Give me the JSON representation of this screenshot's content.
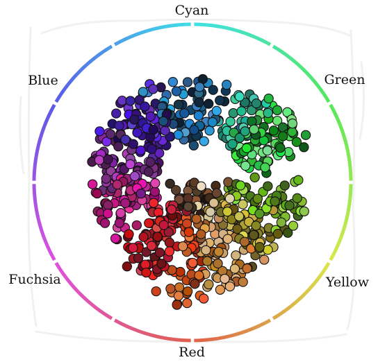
{
  "chart_data": {
    "type": "scatter",
    "title": "",
    "labels": [
      {
        "name": "Cyan",
        "angle_deg": 0
      },
      {
        "name": "Green",
        "angle_deg": 60
      },
      {
        "name": "Yellow",
        "angle_deg": 120
      },
      {
        "name": "Red",
        "angle_deg": 180
      },
      {
        "name": "Fuchsia",
        "angle_deg": 240
      },
      {
        "name": "Blue",
        "angle_deg": 300
      }
    ],
    "wheel": {
      "segments": 12,
      "gradient_stops": [
        {
          "angle_deg": 0,
          "color": "#40e0e8"
        },
        {
          "angle_deg": 60,
          "color": "#55e85a"
        },
        {
          "angle_deg": 120,
          "color": "#d8e84a"
        },
        {
          "angle_deg": 180,
          "color": "#e0604a"
        },
        {
          "angle_deg": 240,
          "color": "#e050e0"
        },
        {
          "angle_deg": 300,
          "color": "#5a5ae8"
        },
        {
          "angle_deg": 360,
          "color": "#40e0e8"
        }
      ]
    },
    "clusters": [
      {
        "name": "cyan-dark",
        "hue": 205,
        "sat": 65,
        "light_min": 12,
        "light_max": 62,
        "angle_deg": 0,
        "spread_deg": 30,
        "r_min": 0.25,
        "r_max": 0.72,
        "count": 70
      },
      {
        "name": "blue-purple",
        "hue": 258,
        "sat": 70,
        "light_min": 18,
        "light_max": 55,
        "angle_deg": 318,
        "spread_deg": 26,
        "r_min": 0.3,
        "r_max": 0.75,
        "count": 80
      },
      {
        "name": "purple-magenta",
        "hue": 290,
        "sat": 55,
        "light_min": 20,
        "light_max": 58,
        "angle_deg": 285,
        "spread_deg": 22,
        "r_min": 0.25,
        "r_max": 0.72,
        "count": 70
      },
      {
        "name": "magenta-pink",
        "hue": 322,
        "sat": 75,
        "light_min": 30,
        "light_max": 58,
        "angle_deg": 255,
        "spread_deg": 20,
        "r_min": 0.25,
        "r_max": 0.72,
        "count": 70
      },
      {
        "name": "red-crimson",
        "hue": 355,
        "sat": 75,
        "light_min": 22,
        "light_max": 58,
        "angle_deg": 212,
        "spread_deg": 20,
        "r_min": 0.2,
        "r_max": 0.75,
        "count": 80
      },
      {
        "name": "red-orange",
        "hue": 18,
        "sat": 80,
        "light_min": 28,
        "light_max": 60,
        "angle_deg": 183,
        "spread_deg": 14,
        "r_min": 0.25,
        "r_max": 0.88,
        "count": 50
      },
      {
        "name": "orange-tan",
        "hue": 32,
        "sat": 60,
        "light_min": 35,
        "light_max": 75,
        "angle_deg": 158,
        "spread_deg": 20,
        "r_min": 0.25,
        "r_max": 0.78,
        "count": 70
      },
      {
        "name": "olive-yellow",
        "hue": 52,
        "sat": 60,
        "light_min": 20,
        "light_max": 60,
        "angle_deg": 130,
        "spread_deg": 18,
        "r_min": 0.2,
        "r_max": 0.72,
        "count": 70
      },
      {
        "name": "yellow-green",
        "hue": 88,
        "sat": 65,
        "light_min": 20,
        "light_max": 60,
        "angle_deg": 105,
        "spread_deg": 16,
        "r_min": 0.25,
        "r_max": 0.8,
        "count": 70
      },
      {
        "name": "green",
        "hue": 128,
        "sat": 70,
        "light_min": 18,
        "light_max": 70,
        "angle_deg": 60,
        "spread_deg": 22,
        "r_min": 0.35,
        "r_max": 0.85,
        "count": 80
      },
      {
        "name": "teal-green",
        "hue": 165,
        "sat": 60,
        "light_min": 25,
        "light_max": 60,
        "angle_deg": 38,
        "spread_deg": 14,
        "r_min": 0.35,
        "r_max": 0.75,
        "count": 35
      },
      {
        "name": "dark-center",
        "hue": 25,
        "sat": 35,
        "light_min": 8,
        "light_max": 40,
        "angle_deg": 180,
        "spread_deg": 80,
        "r_min": 0.0,
        "r_max": 0.25,
        "count": 45
      },
      {
        "name": "pale-center",
        "hue": 40,
        "sat": 50,
        "light_min": 70,
        "light_max": 88,
        "angle_deg": 150,
        "spread_deg": 40,
        "r_min": 0.05,
        "r_max": 0.3,
        "count": 15
      }
    ]
  }
}
